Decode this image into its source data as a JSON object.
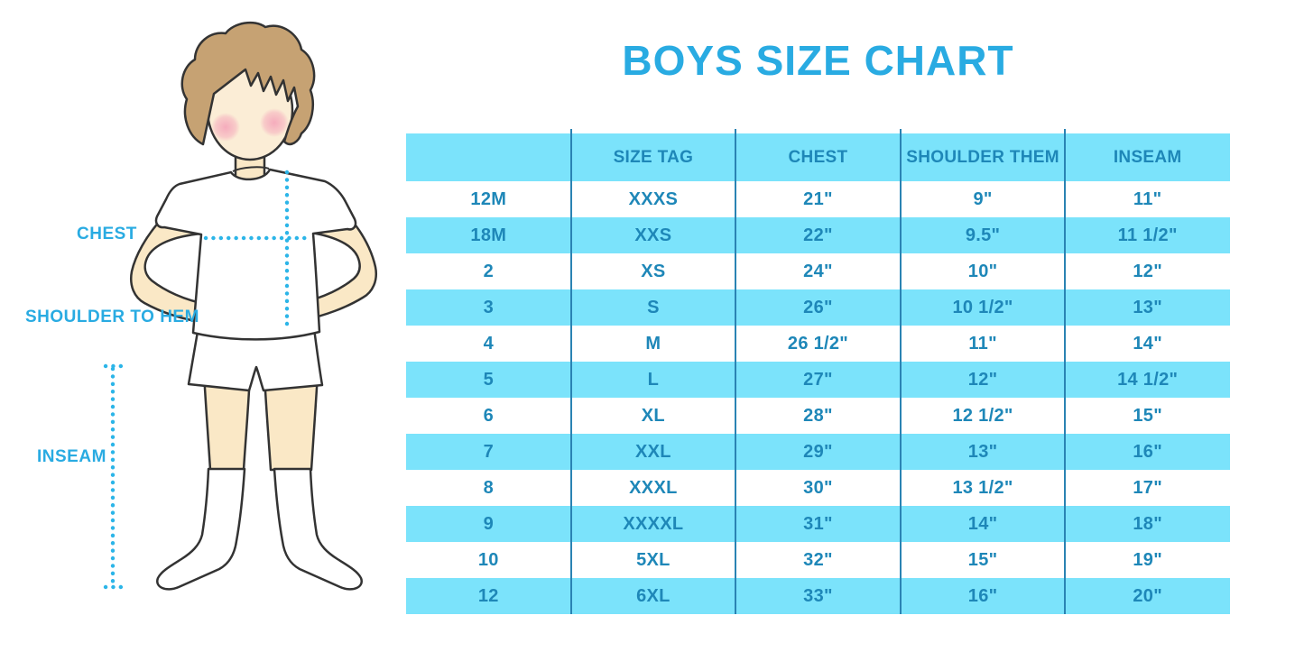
{
  "title": "BOYS SIZE CHART",
  "figure_labels": {
    "chest": "CHEST",
    "shoulder_to_hem": "SHOULDER TO HEM",
    "inseam": "INSEAM"
  },
  "colors": {
    "accent_blue": "#29ABE2",
    "table_stripe": "#7BE3FB",
    "table_text": "#1E87B8",
    "divider_line": "#2A83B3",
    "dotted_line": "#2CB5E8",
    "skin_color": "#FAE8C6",
    "face_color": "#FBEDD6",
    "hair_color": "#C6A273",
    "outline_dark": "#333333",
    "cheek_pink": "#F4A0B8"
  },
  "chart_data": {
    "type": "table",
    "title": "BOYS SIZE CHART",
    "columns": [
      "",
      "SIZE TAG",
      "CHEST",
      "SHOULDER THEM",
      "INSEAM"
    ],
    "rows": [
      [
        "12M",
        "XXXS",
        "21\"",
        "9\"",
        "11\""
      ],
      [
        "18M",
        "XXS",
        "22\"",
        "9.5\"",
        "11 1/2\""
      ],
      [
        "2",
        "XS",
        "24\"",
        "10\"",
        "12\""
      ],
      [
        "3",
        "S",
        "26\"",
        "10 1/2\"",
        "13\""
      ],
      [
        "4",
        "M",
        "26 1/2\"",
        "11\"",
        "14\""
      ],
      [
        "5",
        "L",
        "27\"",
        "12\"",
        "14 1/2\""
      ],
      [
        "6",
        "XL",
        "28\"",
        "12 1/2\"",
        "15\""
      ],
      [
        "7",
        "XXL",
        "29\"",
        "13\"",
        "16\""
      ],
      [
        "8",
        "XXXL",
        "30\"",
        "13 1/2\"",
        "17\""
      ],
      [
        "9",
        "XXXXL",
        "31\"",
        "14\"",
        "18\""
      ],
      [
        "10",
        "5XL",
        "32\"",
        "15\"",
        "19\""
      ],
      [
        "12",
        "6XL",
        "33\"",
        "16\"",
        "20\""
      ]
    ]
  }
}
